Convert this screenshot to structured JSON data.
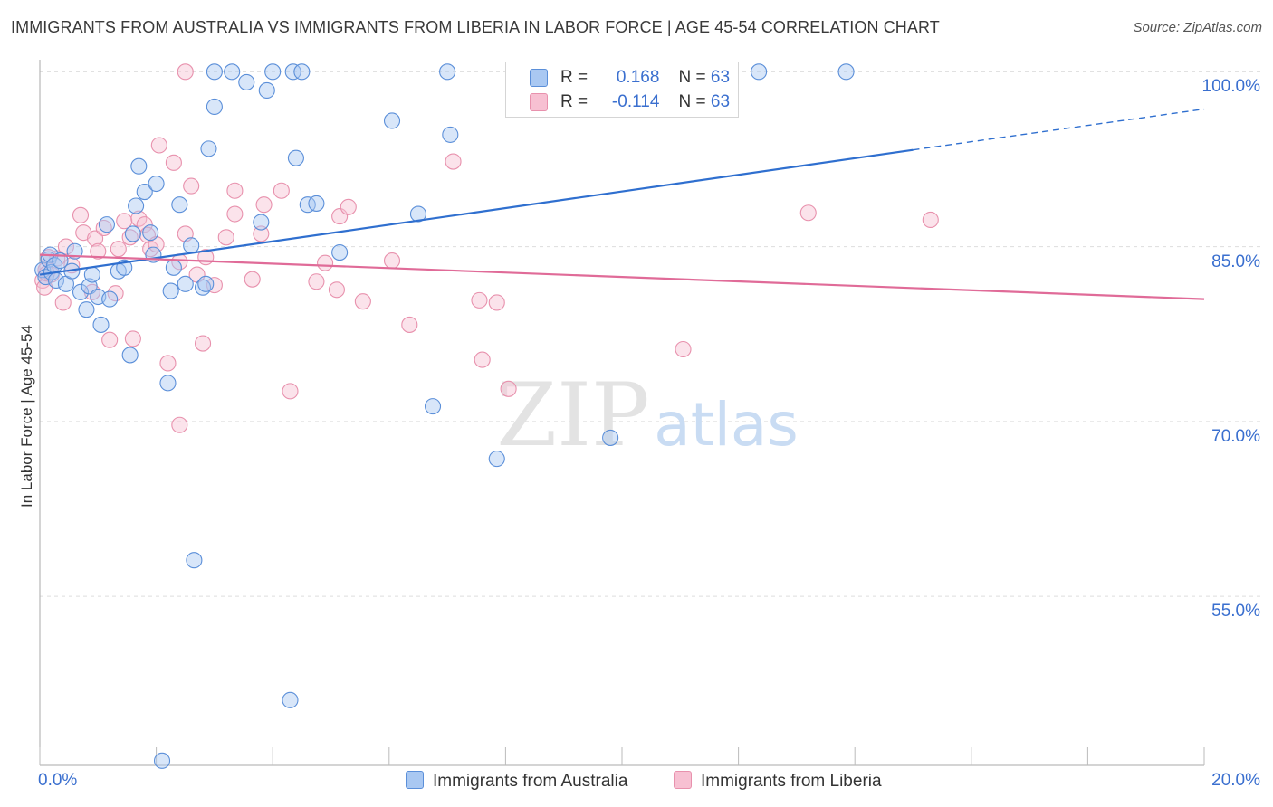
{
  "title": "IMMIGRANTS FROM AUSTRALIA VS IMMIGRANTS FROM LIBERIA IN LABOR FORCE | AGE 45-54 CORRELATION CHART",
  "source": "Source: ZipAtlas.com",
  "watermark": {
    "zip": "ZIP",
    "atlas": "atlas"
  },
  "legend": {
    "australia": {
      "r_label": "R =",
      "r": "0.168",
      "n_label": "N =",
      "n": "63"
    },
    "liberia": {
      "r_label": "R =",
      "r": "-0.114",
      "n_label": "N =",
      "n": "63"
    }
  },
  "colors": {
    "australia_fill": "#a9c8f2",
    "australia_stroke": "#5b8fd9",
    "australia_line": "#2f6fcf",
    "liberia_fill": "#f7c0d2",
    "liberia_stroke": "#e891ad",
    "liberia_line": "#e06b98",
    "tick_text": "#3a6fcf",
    "grid": "#dddddd"
  },
  "chart_data": {
    "type": "scatter",
    "title": "IMMIGRANTS FROM AUSTRALIA VS IMMIGRANTS FROM LIBERIA IN LABOR FORCE | AGE 45-54 CORRELATION CHART",
    "xlabel": "",
    "ylabel": "In Labor Force | Age 45-54",
    "xlim": [
      0,
      20
    ],
    "ylim": [
      40.5,
      101.5
    ],
    "x_tick_labels": {
      "left": "0.0%",
      "right": "20.0%"
    },
    "y_ticks": [
      {
        "value": 100,
        "label": "100.0%"
      },
      {
        "value": 85,
        "label": "85.0%"
      },
      {
        "value": 70,
        "label": "70.0%"
      },
      {
        "value": 55,
        "label": "55.0%"
      }
    ],
    "grid": true,
    "series": [
      {
        "name": "Immigrants from Australia",
        "r": 0.168,
        "n": 63,
        "trend": {
          "x0": 0,
          "y0": 82.6,
          "x1": 15.0,
          "y1": 93.3,
          "dash_x1": 20.0,
          "dash_y1": 96.8
        },
        "points": [
          [
            0.05,
            83.0
          ],
          [
            0.1,
            82.4
          ],
          [
            0.15,
            83.9
          ],
          [
            0.18,
            84.3
          ],
          [
            0.2,
            82.8
          ],
          [
            0.25,
            83.4
          ],
          [
            0.28,
            82.1
          ],
          [
            0.35,
            83.8
          ],
          [
            0.45,
            81.8
          ],
          [
            0.55,
            82.9
          ],
          [
            0.6,
            84.6
          ],
          [
            0.7,
            81.1
          ],
          [
            0.8,
            79.6
          ],
          [
            0.85,
            81.6
          ],
          [
            0.9,
            82.6
          ],
          [
            1.0,
            80.7
          ],
          [
            1.05,
            78.3
          ],
          [
            1.15,
            86.9
          ],
          [
            1.2,
            80.5
          ],
          [
            1.35,
            82.9
          ],
          [
            1.45,
            83.2
          ],
          [
            1.55,
            75.7
          ],
          [
            1.6,
            86.1
          ],
          [
            1.65,
            88.5
          ],
          [
            1.7,
            91.9
          ],
          [
            1.8,
            89.7
          ],
          [
            1.9,
            86.2
          ],
          [
            1.95,
            84.3
          ],
          [
            2.0,
            90.4
          ],
          [
            2.2,
            73.3
          ],
          [
            2.25,
            81.2
          ],
          [
            2.3,
            83.2
          ],
          [
            2.4,
            88.6
          ],
          [
            2.5,
            81.8
          ],
          [
            2.6,
            85.1
          ],
          [
            2.65,
            58.1
          ],
          [
            2.8,
            81.5
          ],
          [
            2.85,
            81.8
          ],
          [
            2.9,
            93.4
          ],
          [
            3.0,
            97.0
          ],
          [
            3.0,
            100.0
          ],
          [
            3.3,
            100.0
          ],
          [
            3.55,
            99.1
          ],
          [
            3.8,
            87.1
          ],
          [
            3.9,
            98.4
          ],
          [
            4.0,
            100.0
          ],
          [
            4.3,
            46.1
          ],
          [
            4.35,
            100.0
          ],
          [
            4.5,
            100.0
          ],
          [
            4.4,
            92.6
          ],
          [
            4.6,
            88.6
          ],
          [
            4.75,
            88.7
          ],
          [
            5.15,
            84.5
          ],
          [
            6.05,
            95.8
          ],
          [
            6.5,
            87.8
          ],
          [
            6.75,
            71.3
          ],
          [
            7.0,
            100.0
          ],
          [
            7.05,
            94.6
          ],
          [
            7.85,
            66.8
          ],
          [
            9.8,
            68.6
          ],
          [
            12.35,
            100.0
          ],
          [
            13.85,
            100.0
          ],
          [
            2.1,
            40.9
          ]
        ]
      },
      {
        "name": "Immigrants from Liberia",
        "r": -0.114,
        "n": 63,
        "trend": {
          "x0": 0,
          "y0": 84.3,
          "x1": 20.0,
          "y1": 80.5
        },
        "points": [
          [
            0.05,
            82.1
          ],
          [
            0.1,
            83.0
          ],
          [
            0.15,
            84.1
          ],
          [
            0.2,
            82.6
          ],
          [
            0.3,
            84.0
          ],
          [
            0.4,
            80.2
          ],
          [
            0.45,
            85.0
          ],
          [
            0.55,
            83.4
          ],
          [
            0.7,
            87.7
          ],
          [
            0.75,
            86.2
          ],
          [
            0.9,
            81.1
          ],
          [
            0.95,
            85.7
          ],
          [
            1.0,
            84.6
          ],
          [
            1.1,
            86.6
          ],
          [
            1.2,
            77.0
          ],
          [
            1.3,
            81.0
          ],
          [
            1.35,
            84.8
          ],
          [
            1.45,
            87.2
          ],
          [
            1.55,
            85.8
          ],
          [
            1.6,
            77.1
          ],
          [
            1.7,
            87.4
          ],
          [
            1.8,
            86.9
          ],
          [
            1.85,
            86.0
          ],
          [
            1.9,
            84.8
          ],
          [
            2.0,
            85.2
          ],
          [
            2.05,
            93.7
          ],
          [
            2.2,
            75.0
          ],
          [
            2.3,
            92.2
          ],
          [
            2.4,
            83.7
          ],
          [
            2.4,
            69.7
          ],
          [
            2.5,
            100.0
          ],
          [
            2.5,
            86.1
          ],
          [
            2.6,
            90.2
          ],
          [
            2.7,
            82.6
          ],
          [
            2.8,
            76.7
          ],
          [
            2.85,
            84.1
          ],
          [
            3.0,
            81.7
          ],
          [
            3.2,
            85.8
          ],
          [
            3.35,
            87.8
          ],
          [
            3.35,
            89.8
          ],
          [
            3.65,
            82.2
          ],
          [
            3.8,
            86.1
          ],
          [
            3.85,
            88.6
          ],
          [
            4.15,
            89.8
          ],
          [
            4.3,
            72.6
          ],
          [
            4.75,
            82.0
          ],
          [
            4.9,
            83.6
          ],
          [
            5.1,
            81.3
          ],
          [
            5.15,
            87.6
          ],
          [
            5.3,
            88.4
          ],
          [
            5.55,
            80.3
          ],
          [
            6.05,
            83.8
          ],
          [
            6.35,
            78.3
          ],
          [
            7.1,
            92.3
          ],
          [
            7.55,
            80.4
          ],
          [
            7.6,
            75.3
          ],
          [
            7.85,
            80.2
          ],
          [
            8.05,
            72.8
          ],
          [
            11.05,
            76.2
          ],
          [
            13.2,
            87.9
          ],
          [
            15.3,
            87.3
          ],
          [
            0.08,
            81.5
          ],
          [
            0.12,
            82.7
          ]
        ]
      }
    ]
  },
  "bottom_legend": {
    "australia": "Immigrants from Australia",
    "liberia": "Immigrants from Liberia"
  }
}
